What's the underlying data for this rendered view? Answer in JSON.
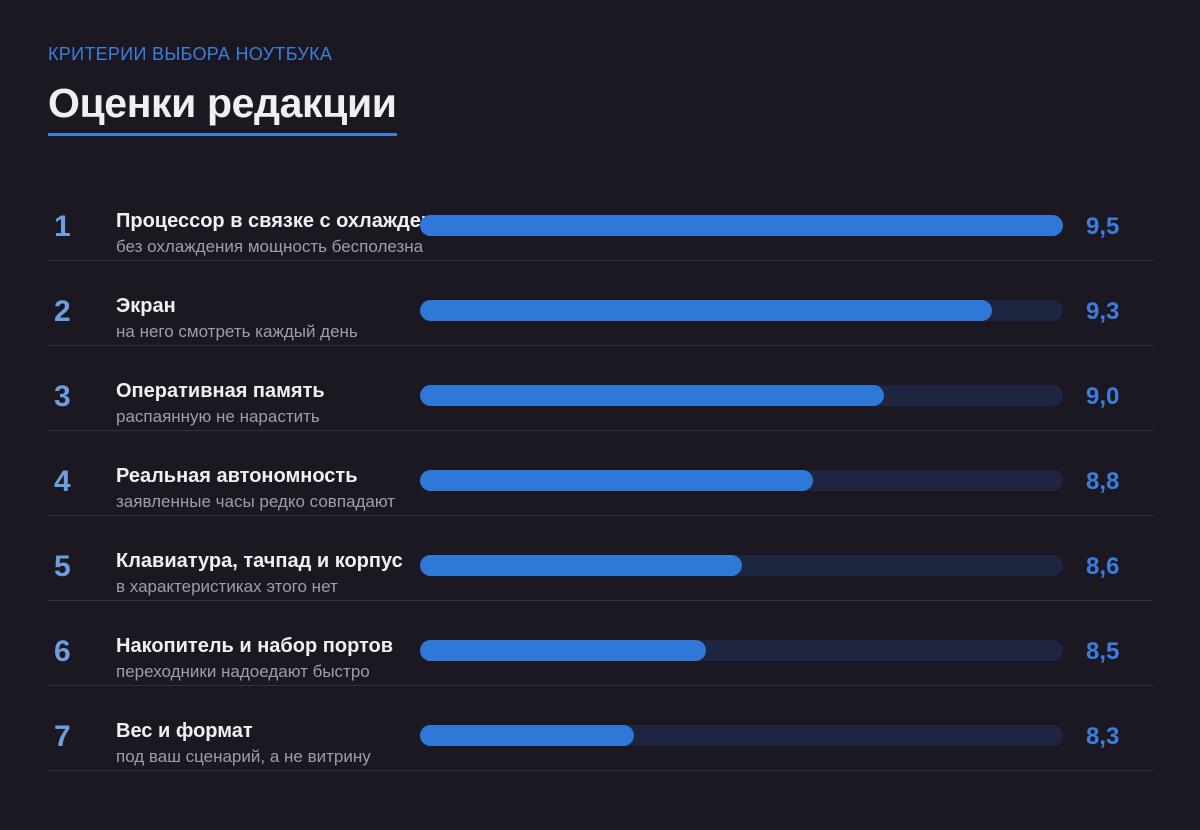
{
  "header": {
    "kicker": "КРИТЕРИИ ВЫБОРА НОУТБУКА",
    "title": "Оценки редакции"
  },
  "colors": {
    "background": "#1c1822",
    "accent": "#3a7ee0",
    "bar_fill": "#2f78d8",
    "bar_track": "#1d2540",
    "rank": "#6d9fdf"
  },
  "chart_data": {
    "type": "bar",
    "orientation": "horizontal",
    "title": "Оценки редакции",
    "subtitle": "КРИТЕРИИ ВЫБОРА НОУТБУКА",
    "xlim": [
      7.7,
      9.5
    ],
    "categories": [
      "Процессор в связке с охлаждением",
      "Экран",
      "Оперативная память",
      "Реальная автономность",
      "Клавиатура, тачпад и корпус",
      "Накопитель и набор портов",
      "Вес и формат"
    ],
    "values": [
      9.5,
      9.3,
      9.0,
      8.8,
      8.6,
      8.5,
      8.3
    ],
    "rows": [
      {
        "rank": "1",
        "name": "Процессор в связке с охлаждением",
        "note": "без охлаждения мощность бесполезна",
        "value": 9.5,
        "label": "9,5"
      },
      {
        "rank": "2",
        "name": "Экран",
        "note": "на него смотреть каждый день",
        "value": 9.3,
        "label": "9,3"
      },
      {
        "rank": "3",
        "name": "Оперативная память",
        "note": "распаянную не нарастить",
        "value": 9.0,
        "label": "9,0"
      },
      {
        "rank": "4",
        "name": "Реальная автономность",
        "note": "заявленные часы редко совпадают",
        "value": 8.8,
        "label": "8,8"
      },
      {
        "rank": "5",
        "name": "Клавиатура, тачпад и корпус",
        "note": "в характеристиках этого нет",
        "value": 8.6,
        "label": "8,6"
      },
      {
        "rank": "6",
        "name": "Накопитель и набор портов",
        "note": "переходники надоедают быстро",
        "value": 8.5,
        "label": "8,5"
      },
      {
        "rank": "7",
        "name": "Вес и формат",
        "note": "под ваш сценарий, а не витрину",
        "value": 8.3,
        "label": "8,3"
      }
    ]
  }
}
